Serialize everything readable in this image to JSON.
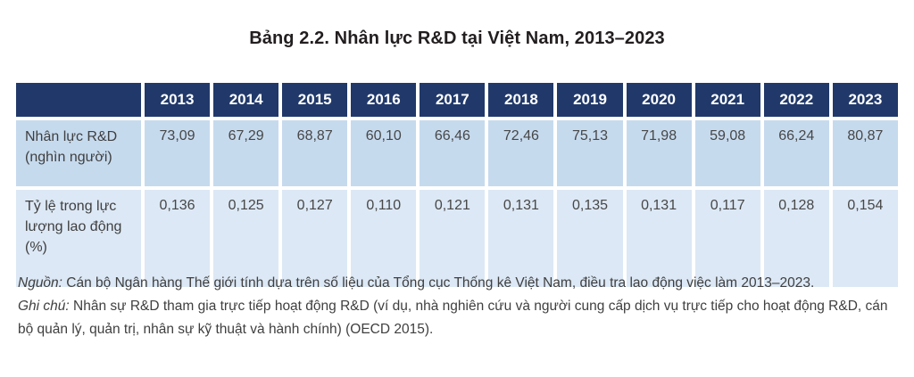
{
  "title": "Bảng 2.2. Nhân lực R&D tại Việt Nam, 2013–2023",
  "table": {
    "corner_label": "",
    "years": [
      "2013",
      "2014",
      "2015",
      "2016",
      "2017",
      "2018",
      "2019",
      "2020",
      "2021",
      "2022",
      "2023"
    ],
    "rows": [
      {
        "label": "Nhân lực R&D (nghìn người)",
        "values": [
          "73,09",
          "67,29",
          "68,87",
          "60,10",
          "66,46",
          "72,46",
          "75,13",
          "71,98",
          "59,08",
          "66,24",
          "80,87"
        ]
      },
      {
        "label": "Tỷ lệ trong lực lượng lao động (%)",
        "values": [
          "0,136",
          "0,125",
          "0,127",
          "0,110",
          "0,121",
          "0,131",
          "0,135",
          "0,131",
          "0,117",
          "0,128",
          "0,154"
        ]
      }
    ]
  },
  "notes": {
    "source_label": "Nguồn:",
    "source_text": " Cán bộ Ngân hàng Thế giới tính dựa trên số liệu của Tổng cục Thống kê Việt Nam, điều tra lao động việc làm 2013–2023.",
    "note_label": "Ghi chú:",
    "note_text": " Nhân sự R&D tham gia trực tiếp hoạt động R&D (ví dụ, nhà nghiên cứu và người cung cấp dịch vụ trực tiếp cho hoạt động R&D, cán bộ quản lý, quản trị, nhân sự kỹ thuật và hành chính) (OECD 2015)."
  },
  "colors": {
    "header_bg": "#21396a",
    "header_text": "#ffffff",
    "row1_bg": "#c6daee",
    "row2_bg": "#dce8f5",
    "body_text": "#474747",
    "title_text": "#221e1f"
  },
  "chart_data": {
    "type": "table",
    "title": "Bảng 2.2. Nhân lực R&D tại Việt Nam, 2013–2023",
    "categories": [
      2013,
      2014,
      2015,
      2016,
      2017,
      2018,
      2019,
      2020,
      2021,
      2022,
      2023
    ],
    "series": [
      {
        "name": "Nhân lực R&D (nghìn người)",
        "values": [
          73.09,
          67.29,
          68.87,
          60.1,
          66.46,
          72.46,
          75.13,
          71.98,
          59.08,
          66.24,
          80.87
        ]
      },
      {
        "name": "Tỷ lệ trong lực lượng lao động (%)",
        "values": [
          0.136,
          0.125,
          0.127,
          0.11,
          0.121,
          0.131,
          0.135,
          0.131,
          0.117,
          0.128,
          0.154
        ]
      }
    ]
  }
}
